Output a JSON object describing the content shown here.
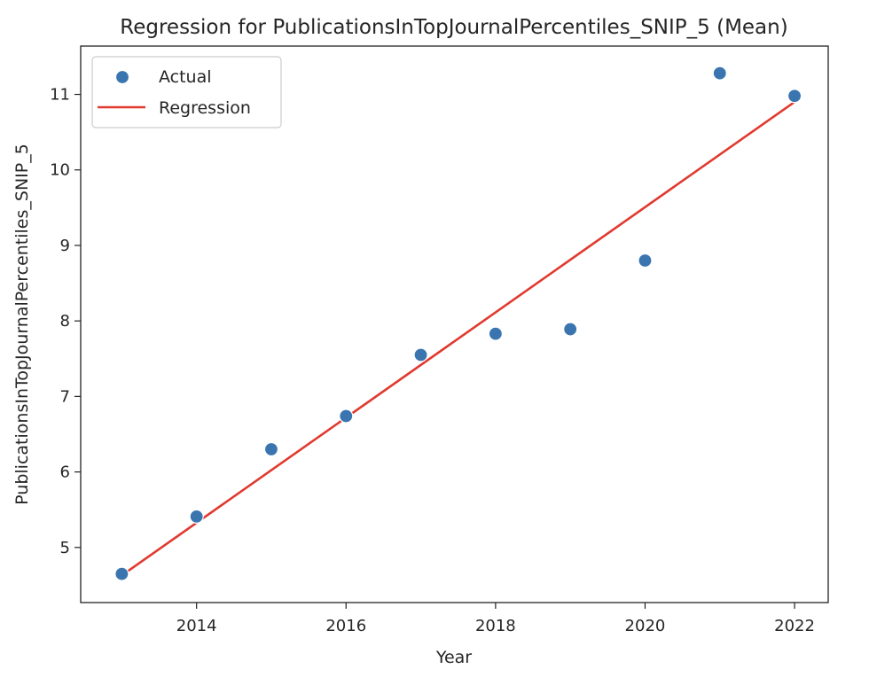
{
  "chart_data": {
    "type": "scatter",
    "title": "Regression for PublicationsInTopJournalPercentiles_SNIP_5 (Mean)",
    "xlabel": "Year",
    "ylabel": "PublicationsInTopJournalPercentiles_SNIP_5",
    "xlim": [
      2012.45,
      2022.45
    ],
    "ylim": [
      4.27,
      11.64
    ],
    "xticks": [
      2014,
      2016,
      2018,
      2020,
      2022
    ],
    "yticks": [
      5,
      6,
      7,
      8,
      9,
      10,
      11
    ],
    "grid": false,
    "legend_position": "upper-left",
    "series": [
      {
        "name": "Actual",
        "kind": "scatter",
        "color": "#3a75b0",
        "x": [
          2013,
          2014,
          2015,
          2016,
          2017,
          2018,
          2019,
          2020,
          2021,
          2022
        ],
        "y": [
          4.65,
          5.41,
          6.3,
          6.74,
          7.55,
          7.83,
          7.89,
          8.8,
          11.28,
          10.98
        ]
      },
      {
        "name": "Regression",
        "kind": "line",
        "color": "#e03a2f",
        "x": [
          2013,
          2022
        ],
        "y": [
          4.63,
          10.9
        ]
      }
    ]
  }
}
